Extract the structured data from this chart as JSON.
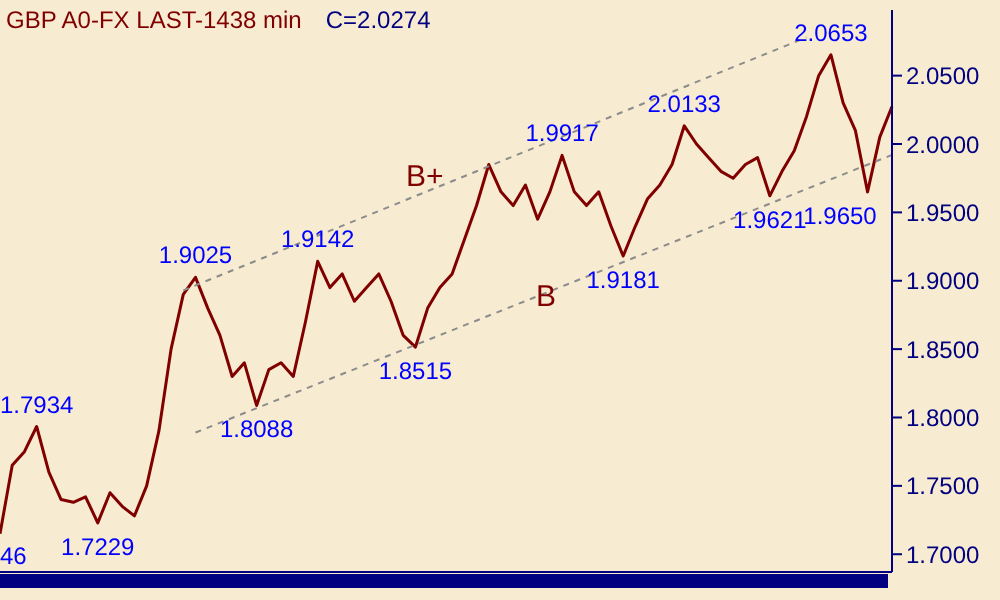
{
  "chart_data": {
    "type": "line",
    "title": "GBP A0-FX LAST-1438 min",
    "subtitle": "C=2.0274",
    "categories": [
      null,
      null,
      null,
      null,
      null,
      null,
      null,
      null,
      null,
      null,
      null,
      null,
      null,
      null,
      null,
      null,
      null,
      null,
      null,
      null,
      null,
      null,
      null,
      null,
      null,
      null,
      null,
      null,
      null,
      null,
      null,
      null,
      null,
      null,
      null,
      null,
      null,
      null,
      null,
      null,
      null,
      null,
      null,
      null,
      null,
      null,
      null,
      null,
      null,
      null,
      null,
      null,
      null,
      null,
      null,
      null,
      null,
      null,
      null,
      null,
      null,
      null,
      null,
      null,
      null,
      null,
      null,
      null,
      null,
      null,
      null,
      null,
      null,
      null
    ],
    "series": [
      {
        "color": "#800000",
        "line_style": "solid",
        "values": [
          1.715,
          1.765,
          1.775,
          1.7934,
          1.76,
          1.74,
          1.738,
          1.742,
          1.7229,
          1.745,
          1.735,
          1.728,
          1.75,
          1.79,
          1.85,
          1.89,
          1.9025,
          1.88,
          1.86,
          1.83,
          1.84,
          1.8088,
          1.835,
          1.84,
          1.83,
          1.87,
          1.9142,
          1.895,
          1.905,
          1.885,
          1.895,
          1.905,
          1.885,
          1.86,
          1.8515,
          1.88,
          1.895,
          1.905,
          1.93,
          1.955,
          1.985,
          1.965,
          1.955,
          1.97,
          1.945,
          1.965,
          1.9917,
          1.965,
          1.955,
          1.965,
          1.94,
          1.9181,
          1.94,
          1.96,
          1.97,
          1.985,
          2.0133,
          2.0,
          1.99,
          1.98,
          1.975,
          1.985,
          1.99,
          1.9621,
          1.98,
          1.995,
          2.02,
          2.05,
          2.0653,
          2.03,
          2.01,
          1.965,
          2.005,
          2.0274
        ],
        "value_labels": [
          null,
          null,
          null,
          "1.7934",
          null,
          null,
          null,
          null,
          "1.7229",
          null,
          null,
          null,
          null,
          null,
          null,
          null,
          "1.9025",
          null,
          null,
          null,
          null,
          "1.8088",
          null,
          null,
          null,
          null,
          "1.9142",
          null,
          null,
          null,
          null,
          null,
          null,
          null,
          "1.8515",
          null,
          null,
          null,
          null,
          null,
          null,
          null,
          null,
          null,
          null,
          null,
          "1.9917",
          null,
          null,
          null,
          null,
          "1.9181",
          null,
          null,
          null,
          null,
          "2.0133",
          null,
          null,
          null,
          null,
          null,
          null,
          "1.9621",
          null,
          null,
          null,
          null,
          "2.0653",
          null,
          null,
          "1.9650",
          null,
          null
        ]
      },
      {
        "type": "line",
        "color": "#8c8c8c",
        "line_style": "dashed",
        "values": [
          null,
          null,
          null,
          null,
          null,
          null,
          null,
          null,
          null,
          null,
          null,
          null,
          null,
          null,
          null,
          1.893,
          null,
          null,
          null,
          null,
          null,
          null,
          null,
          null,
          null,
          null,
          null,
          null,
          null,
          null,
          null,
          null,
          null,
          null,
          null,
          null,
          null,
          null,
          null,
          null,
          null,
          null,
          null,
          null,
          null,
          null,
          null,
          null,
          null,
          null,
          null,
          null,
          null,
          null,
          null,
          null,
          null,
          null,
          null,
          null,
          null,
          null,
          null,
          null,
          null,
          null,
          2.078,
          null,
          null,
          null,
          null,
          null,
          null,
          null
        ]
      },
      {
        "type": "line",
        "color": "#8c8c8c",
        "line_style": "dashed",
        "values": [
          null,
          null,
          null,
          null,
          null,
          null,
          null,
          null,
          null,
          null,
          null,
          null,
          null,
          null,
          null,
          null,
          1.789,
          null,
          null,
          null,
          null,
          null,
          null,
          null,
          null,
          null,
          null,
          null,
          null,
          null,
          null,
          null,
          null,
          null,
          null,
          null,
          null,
          null,
          null,
          null,
          null,
          null,
          null,
          null,
          null,
          null,
          null,
          null,
          null,
          null,
          null,
          null,
          null,
          null,
          null,
          null,
          null,
          null,
          null,
          null,
          null,
          null,
          null,
          null,
          null,
          null,
          null,
          null,
          null,
          null,
          null,
          null,
          null,
          1.992
        ]
      }
    ],
    "annotations": [
      "B+",
      "B",
      "46"
    ],
    "ylim": [
      1.687,
      2.098
    ],
    "yticks": [
      {
        "value": 1.7,
        "label": "1.7000"
      },
      {
        "value": 1.75,
        "label": "1.7500"
      },
      {
        "value": 1.8,
        "label": "1.8000"
      },
      {
        "value": 1.85,
        "label": "1.8500"
      },
      {
        "value": 1.9,
        "label": "1.9000"
      },
      {
        "value": 1.95,
        "label": "1.9500"
      },
      {
        "value": 2.0,
        "label": "2.0000"
      },
      {
        "value": 2.05,
        "label": "2.0500"
      }
    ],
    "tick_labels": "y",
    "marker": "none"
  }
}
